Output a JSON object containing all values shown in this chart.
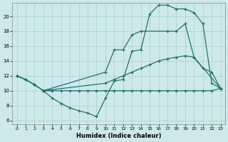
{
  "bg_color": "#cde9e9",
  "grid_color": "#aacfcf",
  "line_color": "#1a6b6b",
  "xlabel": "Humidex (Indice chaleur)",
  "xlim": [
    -0.5,
    23.5
  ],
  "ylim": [
    5.5,
    21.8
  ],
  "yticks": [
    6,
    8,
    10,
    12,
    14,
    16,
    18,
    20
  ],
  "xticks": [
    0,
    1,
    2,
    3,
    4,
    5,
    6,
    7,
    8,
    9,
    10,
    11,
    12,
    13,
    14,
    15,
    16,
    17,
    18,
    19,
    20,
    21,
    22,
    23
  ],
  "curves": [
    {
      "x": [
        0,
        1,
        2,
        3,
        4,
        5,
        6,
        7,
        8,
        9,
        10,
        11,
        12,
        13,
        14,
        15,
        16,
        17,
        18,
        19,
        20,
        21,
        22,
        23
      ],
      "y": [
        12,
        11.5,
        10.8,
        10.0,
        9.0,
        8.3,
        7.7,
        7.3,
        7.0,
        6.5,
        9.0,
        11.3,
        11.5,
        15.3,
        15.5,
        20.3,
        21.5,
        21.5,
        21.0,
        21.0,
        20.5,
        19.0,
        11.0,
        10.3
      ]
    },
    {
      "x": [
        0,
        1,
        2,
        3,
        4,
        5,
        6,
        7,
        8,
        9,
        10,
        11,
        12,
        13,
        14,
        15,
        16,
        17,
        18,
        19,
        20,
        21,
        22,
        23
      ],
      "y": [
        12,
        11.5,
        10.8,
        10.0,
        10.0,
        10.0,
        10.0,
        10.0,
        10.0,
        10.0,
        10.0,
        10.0,
        10.0,
        10.0,
        10.0,
        10.0,
        10.0,
        10.0,
        10.0,
        10.0,
        10.0,
        10.0,
        10.0,
        10.3
      ]
    },
    {
      "x": [
        0,
        1,
        2,
        3,
        10,
        11,
        12,
        13,
        14,
        15,
        16,
        17,
        18,
        19,
        20,
        21,
        22,
        23
      ],
      "y": [
        12,
        11.5,
        10.8,
        10.0,
        11.0,
        11.5,
        12.0,
        12.5,
        13.0,
        13.5,
        14.0,
        14.3,
        14.5,
        14.7,
        14.5,
        13.0,
        12.5,
        10.3
      ]
    },
    {
      "x": [
        3,
        10,
        11,
        12,
        13,
        14,
        17,
        18,
        19,
        20,
        23
      ],
      "y": [
        10.0,
        12.5,
        15.5,
        15.5,
        17.5,
        18.0,
        18.0,
        18.0,
        19.0,
        14.5,
        10.3
      ]
    }
  ]
}
